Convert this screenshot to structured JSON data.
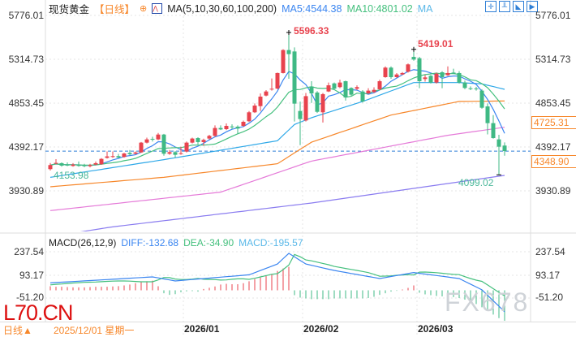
{
  "header": {
    "instrument": "现货黄金",
    "period": "【日线】",
    "ma_params": "MA(5,10,30,60,100,200)",
    "ma5": "MA5:4544.38",
    "ma10": "MA10:4801.02",
    "ma_more": "MA",
    "icons": [
      "crosshair-icon",
      "chart-type-icon",
      "zoom-fit-icon",
      "draw-icon",
      "tool-icon",
      "next-icon"
    ]
  },
  "macd_legend": {
    "title": "MACD(26,12,9)",
    "diff": "DIFF:-132.68",
    "dea": "DEA:-34.90",
    "macd": "MACD:-195.57"
  },
  "axis": {
    "price_ticks": [
      "5776.01",
      "5314.73",
      "4853.45",
      "4392.17",
      "3930.89"
    ],
    "macd_ticks": [
      "237.54",
      "93.17",
      "-51.20"
    ],
    "right_boxes": {
      "ma60": "4725.31",
      "last": "4348.90"
    }
  },
  "annotations": {
    "high": "5596.33",
    "high2": "5419.01",
    "low_left": "4153.98",
    "low_right": "4099.02"
  },
  "footer": {
    "period": "日线▲",
    "cursor_date": "2025/12/01 星期一",
    "months": [
      "2026/01",
      "2026/02",
      "2026/03"
    ]
  },
  "watermarks": {
    "left": "L70.CN",
    "right": "FX678"
  },
  "colors": {
    "up": "#e8434e",
    "down": "#3fb984",
    "ma5": "#3a85f0",
    "ma10": "#45c07e",
    "ma30": "#2ea8e8",
    "ma60": "#f7872a",
    "ma100": "#e57ad8",
    "ma200": "#8a7cf0",
    "accent": "#f7872a"
  },
  "chart_data": {
    "type": "candlestick",
    "ylim": [
      3504,
      5776.01
    ],
    "last_price": 4348.9,
    "ohlc": [
      [
        4159,
        4224,
        4145,
        4202
      ],
      [
        4218,
        4264,
        4210,
        4225
      ],
      [
        4222,
        4230,
        4185,
        4196
      ],
      [
        4205,
        4230,
        4190,
        4200
      ],
      [
        4193,
        4222,
        4185,
        4207
      ],
      [
        4207,
        4240,
        4185,
        4193
      ],
      [
        4200,
        4215,
        4180,
        4190
      ],
      [
        4190,
        4215,
        4178,
        4202
      ],
      [
        4207,
        4240,
        4200,
        4222
      ],
      [
        4210,
        4275,
        4205,
        4267
      ],
      [
        4278,
        4345,
        4270,
        4293
      ],
      [
        4287,
        4345,
        4278,
        4296
      ],
      [
        4296,
        4320,
        4275,
        4281
      ],
      [
        4287,
        4330,
        4280,
        4324
      ],
      [
        4330,
        4360,
        4305,
        4316
      ],
      [
        4321,
        4345,
        4315,
        4335
      ],
      [
        4335,
        4444,
        4330,
        4438
      ],
      [
        4438,
        4490,
        4430,
        4472
      ],
      [
        4478,
        4500,
        4450,
        4470
      ],
      [
        4472,
        4540,
        4465,
        4523
      ],
      [
        4523,
        4530,
        4300,
        4321
      ],
      [
        4321,
        4360,
        4310,
        4338
      ],
      [
        4338,
        4350,
        4280,
        4310
      ],
      [
        4321,
        4395,
        4310,
        4327
      ],
      [
        4344,
        4450,
        4335,
        4438
      ],
      [
        4438,
        4490,
        4430,
        4481
      ],
      [
        4486,
        4495,
        4420,
        4444
      ],
      [
        4444,
        4480,
        4405,
        4467
      ],
      [
        4481,
        4520,
        4470,
        4509
      ],
      [
        4509,
        4620,
        4500,
        4592
      ],
      [
        4592,
        4620,
        4570,
        4577
      ],
      [
        4580,
        4640,
        4570,
        4614
      ],
      [
        4608,
        4630,
        4580,
        4600
      ],
      [
        4606,
        4620,
        4530,
        4586
      ],
      [
        4614,
        4670,
        4605,
        4657
      ],
      [
        4663,
        4770,
        4655,
        4757
      ],
      [
        4757,
        4850,
        4750,
        4828
      ],
      [
        4822,
        4955,
        4770,
        4922
      ],
      [
        4933,
        4990,
        4925,
        4976
      ],
      [
        4999,
        5113,
        4985,
        5005
      ],
      [
        5007,
        5175,
        5000,
        5170
      ],
      [
        5170,
        5420,
        5165,
        5412
      ],
      [
        5412,
        5596.33,
        5110,
        5369
      ],
      [
        5397,
        5440,
        4660,
        4848
      ],
      [
        4771,
        4870,
        4411,
        4686
      ],
      [
        4671,
        4960,
        4660,
        4927
      ],
      [
        5027,
        5084,
        4856,
        4956
      ],
      [
        4965,
        4980,
        4750,
        4762
      ],
      [
        4757,
        4960,
        4650,
        4948
      ],
      [
        4976,
        5070,
        4970,
        5041
      ],
      [
        5061,
        5070,
        4990,
        5005
      ],
      [
        5022,
        5100,
        5010,
        5070
      ],
      [
        5084,
        5090,
        4880,
        4913
      ],
      [
        5013,
        5020,
        4930,
        4942
      ],
      [
        5005,
        5040,
        4990,
        5022
      ],
      [
        4976,
        4990,
        4860,
        4871
      ],
      [
        4956,
        5010,
        4950,
        4985
      ],
      [
        4970,
        5020,
        4960,
        4993
      ],
      [
        4999,
        5100,
        4990,
        5084
      ],
      [
        5127,
        5240,
        5120,
        5227
      ],
      [
        5227,
        5240,
        5110,
        5127
      ],
      [
        5127,
        5170,
        5120,
        5155
      ],
      [
        5155,
        5180,
        5150,
        5170
      ],
      [
        5184,
        5270,
        5175,
        5261
      ],
      [
        5340,
        5419.01,
        5300,
        5312
      ],
      [
        5326,
        5340,
        5010,
        5084
      ],
      [
        5107,
        5150,
        5080,
        5124
      ],
      [
        5141,
        5150,
        5060,
        5070
      ],
      [
        5070,
        5175,
        5060,
        5164
      ],
      [
        5178,
        5190,
        5010,
        5127
      ],
      [
        5147,
        5240,
        5140,
        5170
      ],
      [
        5175,
        5215,
        5160,
        5164
      ],
      [
        5170,
        5190,
        5060,
        5070
      ],
      [
        5070,
        5090,
        5000,
        5013
      ],
      [
        5010,
        5030,
        4990,
        5003
      ],
      [
        5008,
        5025,
        4985,
        5000
      ],
      [
        4985,
        5000,
        4795,
        4805
      ],
      [
        4819,
        4850,
        4525,
        4643
      ],
      [
        4643,
        4727,
        4480,
        4486
      ],
      [
        4472,
        4520,
        4099.02,
        4395
      ],
      [
        4407,
        4440,
        4300,
        4348.9
      ]
    ],
    "ma_long": {
      "ma30": [
        [
          0,
          4073
        ],
        [
          20,
          4259
        ],
        [
          30,
          4358
        ],
        [
          40,
          4458
        ],
        [
          43,
          4629
        ],
        [
          46,
          4700
        ],
        [
          55,
          4871
        ],
        [
          64,
          5070
        ],
        [
          72,
          5070
        ],
        [
          76,
          5056
        ],
        [
          80,
          4999
        ]
      ],
      "ma60": [
        [
          0,
          3974
        ],
        [
          20,
          4073
        ],
        [
          40,
          4216
        ],
        [
          46,
          4443
        ],
        [
          60,
          4728
        ],
        [
          72,
          4871
        ],
        [
          80,
          4876
        ]
      ],
      "ma100": [
        [
          0,
          3723
        ],
        [
          30,
          3917
        ],
        [
          46,
          4244
        ],
        [
          70,
          4515
        ],
        [
          80,
          4600
        ]
      ],
      "ma200": [
        [
          0,
          3450
        ],
        [
          11,
          3552
        ],
        [
          46,
          3803
        ],
        [
          80,
          4093
        ]
      ]
    },
    "macd_hist": [
      25,
      22,
      22,
      20,
      18,
      18,
      18,
      20,
      22,
      22,
      22,
      24,
      26,
      30,
      36,
      44,
      52,
      56,
      60,
      25,
      -18,
      -28,
      -24,
      -12,
      -6,
      -5,
      -8,
      8,
      16,
      24,
      36,
      40,
      38,
      38,
      44,
      56,
      70,
      80,
      90,
      100,
      120,
      135,
      145,
      -30,
      -45,
      -50,
      -55,
      -55,
      -55,
      -55,
      -50,
      -50,
      -50,
      -50,
      -50,
      -50,
      -48,
      -40,
      -28,
      -18,
      -8,
      -3,
      5,
      15,
      30,
      -15,
      -25,
      -30,
      -35,
      -38,
      -40,
      -42,
      -48,
      -58,
      -70,
      -85,
      -105,
      -128,
      -150,
      -172,
      -195.57
    ],
    "diff_anchors": [
      [
        0,
        46
      ],
      [
        18,
        83
      ],
      [
        22,
        58
      ],
      [
        35,
        96
      ],
      [
        40,
        163
      ],
      [
        42,
        229
      ],
      [
        45,
        163
      ],
      [
        50,
        123
      ],
      [
        58,
        73
      ],
      [
        64,
        110
      ],
      [
        72,
        73
      ],
      [
        76,
        3
      ],
      [
        80,
        -132.68
      ]
    ],
    "macd_ylim": [
      -230,
      290
    ]
  }
}
